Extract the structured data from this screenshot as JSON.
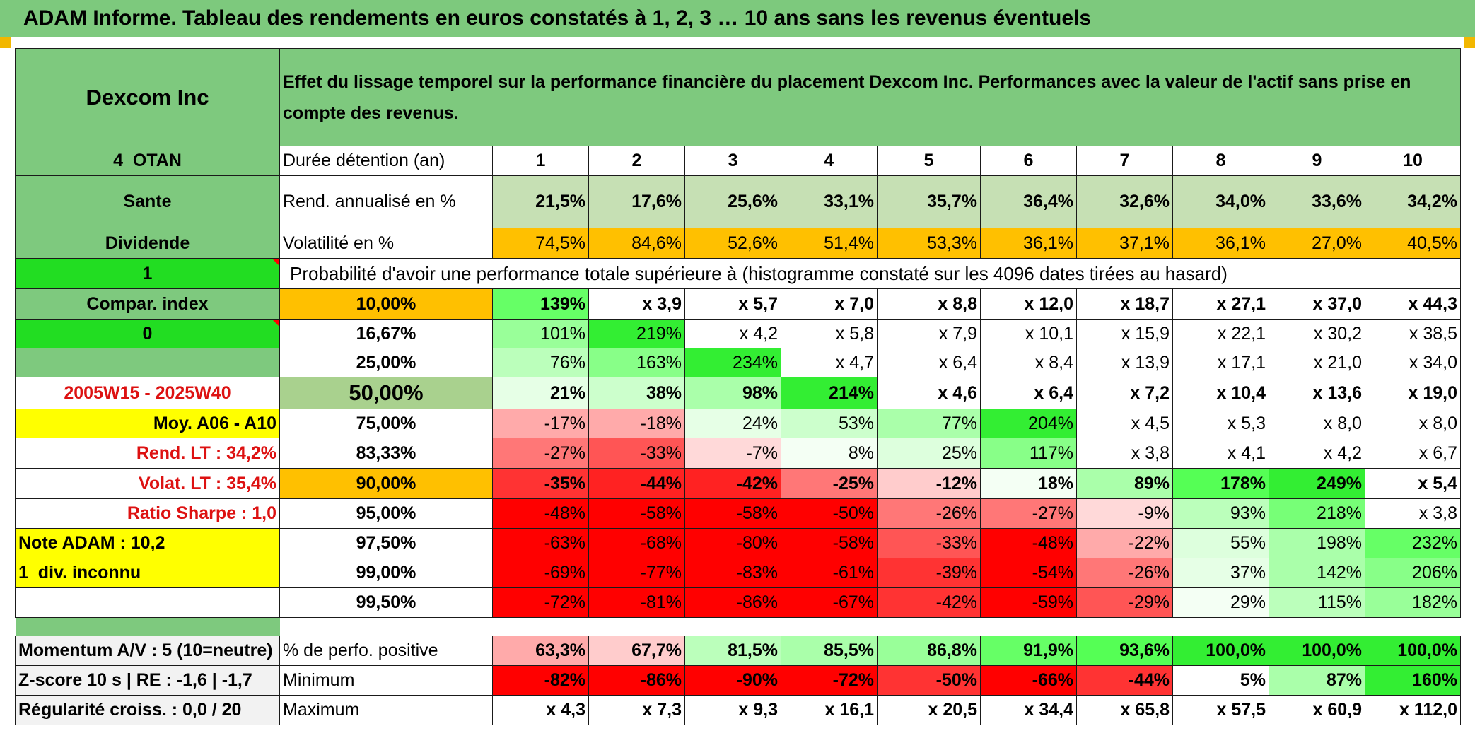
{
  "title": "ADAM Informe. Tableau des rendements en euros constatés à 1, 2, 3 … 10 ans sans les revenus éventuels",
  "header": {
    "company": "Dexcom Inc",
    "description": "Effet du lissage temporel sur la performance financière du placement Dexcom Inc. Performances avec la valeur de l'actif sans prise en compte des revenus."
  },
  "side": {
    "code": "4_OTAN",
    "sector": "Sante",
    "div_label": "Dividende",
    "one": "1",
    "compar": "Compar. index",
    "zero": "0",
    "blank": "",
    "period": "2005W15 - 2025W40",
    "moy": "Moy. A06 - A10",
    "rend_lt": "Rend. LT :   34,2%",
    "volat_lt": "Volat. LT :   35,4%",
    "sharpe": "Ratio Sharpe :    1,0",
    "note": "Note ADAM : 10,2",
    "div_inconnu": "1_div. inconnu",
    "momentum": "Momentum A/V : 5 (10=neutre)",
    "zscore": "Z-score 10 s | RE : -1,6 | -1,7",
    "regularite": "Régularité croiss. : 0,0 / 20"
  },
  "labels": {
    "duree": "Durée détention (an)",
    "rend": "Rend. annualisé en %",
    "volat": "Volatilité en %",
    "proba": "Probabilité d'avoir une performance totale supérieure à (histogramme constaté sur les 4096 dates tirées au hasard)",
    "positive": "% de perfo. positive",
    "minimum": "Minimum",
    "maximum": "Maximum"
  },
  "years": [
    "1",
    "2",
    "3",
    "4",
    "5",
    "6",
    "7",
    "8",
    "9",
    "10"
  ],
  "rendements": [
    "21,5%",
    "17,6%",
    "25,6%",
    "33,1%",
    "35,7%",
    "36,4%",
    "32,6%",
    "34,0%",
    "33,6%",
    "34,2%"
  ],
  "volatilites": [
    "74,5%",
    "84,6%",
    "52,6%",
    "51,4%",
    "53,3%",
    "36,1%",
    "37,1%",
    "36,1%",
    "27,0%",
    "40,5%"
  ],
  "quantiles": [
    {
      "p": "10,00%",
      "v": [
        "139%",
        "x 3,9",
        "x 5,7",
        "x 7,0",
        "x 8,8",
        "x 12,0",
        "x 18,7",
        "x 27,1",
        "x 37,0",
        "x 44,3"
      ]
    },
    {
      "p": "16,67%",
      "v": [
        "101%",
        "219%",
        "x 4,2",
        "x 5,8",
        "x 7,9",
        "x 10,1",
        "x 15,9",
        "x 22,1",
        "x 30,2",
        "x 38,5"
      ]
    },
    {
      "p": "25,00%",
      "v": [
        "76%",
        "163%",
        "234%",
        "x 4,7",
        "x 6,4",
        "x 8,4",
        "x 13,9",
        "x 17,1",
        "x 21,0",
        "x 34,0"
      ]
    },
    {
      "p": "50,00%",
      "v": [
        "21%",
        "38%",
        "98%",
        "214%",
        "x 4,6",
        "x 6,4",
        "x 7,2",
        "x 10,4",
        "x 13,6",
        "x 19,0"
      ]
    },
    {
      "p": "75,00%",
      "v": [
        "-17%",
        "-18%",
        "24%",
        "53%",
        "77%",
        "204%",
        "x 4,5",
        "x 5,3",
        "x 8,0",
        "x 8,0"
      ]
    },
    {
      "p": "83,33%",
      "v": [
        "-27%",
        "-33%",
        "-7%",
        "8%",
        "25%",
        "117%",
        "x 3,8",
        "x 4,1",
        "x 4,2",
        "x 6,7"
      ]
    },
    {
      "p": "90,00%",
      "v": [
        "-35%",
        "-44%",
        "-42%",
        "-25%",
        "-12%",
        "18%",
        "89%",
        "178%",
        "249%",
        "x 5,4"
      ]
    },
    {
      "p": "95,00%",
      "v": [
        "-48%",
        "-58%",
        "-58%",
        "-50%",
        "-26%",
        "-27%",
        "-9%",
        "93%",
        "218%",
        "x 3,8"
      ]
    },
    {
      "p": "97,50%",
      "v": [
        "-63%",
        "-68%",
        "-80%",
        "-58%",
        "-33%",
        "-48%",
        "-22%",
        "55%",
        "198%",
        "232%"
      ]
    },
    {
      "p": "99,00%",
      "v": [
        "-69%",
        "-77%",
        "-83%",
        "-61%",
        "-39%",
        "-54%",
        "-26%",
        "37%",
        "142%",
        "206%"
      ]
    },
    {
      "p": "99,50%",
      "v": [
        "-72%",
        "-81%",
        "-86%",
        "-67%",
        "-42%",
        "-59%",
        "-29%",
        "29%",
        "115%",
        "182%"
      ]
    }
  ],
  "positive": [
    "63,3%",
    "67,7%",
    "81,5%",
    "85,5%",
    "86,8%",
    "91,9%",
    "93,6%",
    "100,0%",
    "100,0%",
    "100,0%"
  ],
  "minimum": [
    "-82%",
    "-86%",
    "-90%",
    "-72%",
    "-50%",
    "-66%",
    "-44%",
    "5%",
    "87%",
    "160%"
  ],
  "maximum": [
    "x 4,3",
    "x 7,3",
    "x 9,3",
    "x 16,1",
    "x 20,5",
    "x 34,4",
    "x 65,8",
    "x 57,5",
    "x 60,9",
    "x 112,0"
  ],
  "colors": {
    "header_green": "#7ec97e",
    "light_green": "#c6e0b4",
    "orange": "#ffc000",
    "yellow": "#ffff00",
    "bright_green": "#22dd22",
    "red_text": "#dd1111",
    "quantile_bg": [
      [
        "#66ff66",
        "#ffffff",
        "#ffffff",
        "#ffffff",
        "#ffffff",
        "#ffffff",
        "#ffffff",
        "#ffffff",
        "#ffffff",
        "#ffffff"
      ],
      [
        "#99ff99",
        "#33ee33",
        "#ffffff",
        "#ffffff",
        "#ffffff",
        "#ffffff",
        "#ffffff",
        "#ffffff",
        "#ffffff",
        "#ffffff"
      ],
      [
        "#bbffbb",
        "#88ff88",
        "#33ee33",
        "#ffffff",
        "#ffffff",
        "#ffffff",
        "#ffffff",
        "#ffffff",
        "#ffffff",
        "#ffffff"
      ],
      [
        "#e6ffe6",
        "#ccffcc",
        "#aaffaa",
        "#33ee33",
        "#ffffff",
        "#ffffff",
        "#ffffff",
        "#ffffff",
        "#ffffff",
        "#ffffff"
      ],
      [
        "#ffaaaa",
        "#ffaaaa",
        "#e6ffe6",
        "#ccffcc",
        "#aaffaa",
        "#33ee33",
        "#ffffff",
        "#ffffff",
        "#ffffff",
        "#ffffff"
      ],
      [
        "#ff7777",
        "#ff5555",
        "#ffd9d9",
        "#f4fff4",
        "#ddffdd",
        "#88ff88",
        "#ffffff",
        "#ffffff",
        "#ffffff",
        "#ffffff"
      ],
      [
        "#ff3333",
        "#ff2222",
        "#ff2222",
        "#ff7777",
        "#ffcccc",
        "#f4fff4",
        "#aaffaa",
        "#55ff55",
        "#33ee33",
        "#ffffff"
      ],
      [
        "#ff0000",
        "#ff0000",
        "#ff0000",
        "#ff0000",
        "#ff7777",
        "#ff7777",
        "#ffd9d9",
        "#bbffbb",
        "#77ff77",
        "#ffffff"
      ],
      [
        "#ff0000",
        "#ff0000",
        "#ff0000",
        "#ff0000",
        "#ff5555",
        "#ff0000",
        "#ffaaaa",
        "#ddffdd",
        "#aaffaa",
        "#66ff66"
      ],
      [
        "#ff0000",
        "#ff0000",
        "#ff0000",
        "#ff0000",
        "#ff3333",
        "#ff0000",
        "#ff7777",
        "#e6ffe6",
        "#aaffaa",
        "#88ff88"
      ],
      [
        "#ff0000",
        "#ff0000",
        "#ff0000",
        "#ff0000",
        "#ff3333",
        "#ff0000",
        "#ff5555",
        "#f4fff4",
        "#bbffbb",
        "#99ff99"
      ]
    ],
    "positive_bg": [
      "#ffaaaa",
      "#ffcccc",
      "#bbffbb",
      "#aaffaa",
      "#99ff99",
      "#66ff66",
      "#55ff55",
      "#33ee33",
      "#33ee33",
      "#33ee33"
    ],
    "minimum_bg": [
      "#ff0000",
      "#ff0000",
      "#ff0000",
      "#ff0000",
      "#ff3333",
      "#ff0000",
      "#ff3333",
      "#ffffff",
      "#aaffaa",
      "#33ee33"
    ],
    "rend_bg": "#c6e0b4",
    "volat_bg": "#ffc000"
  }
}
